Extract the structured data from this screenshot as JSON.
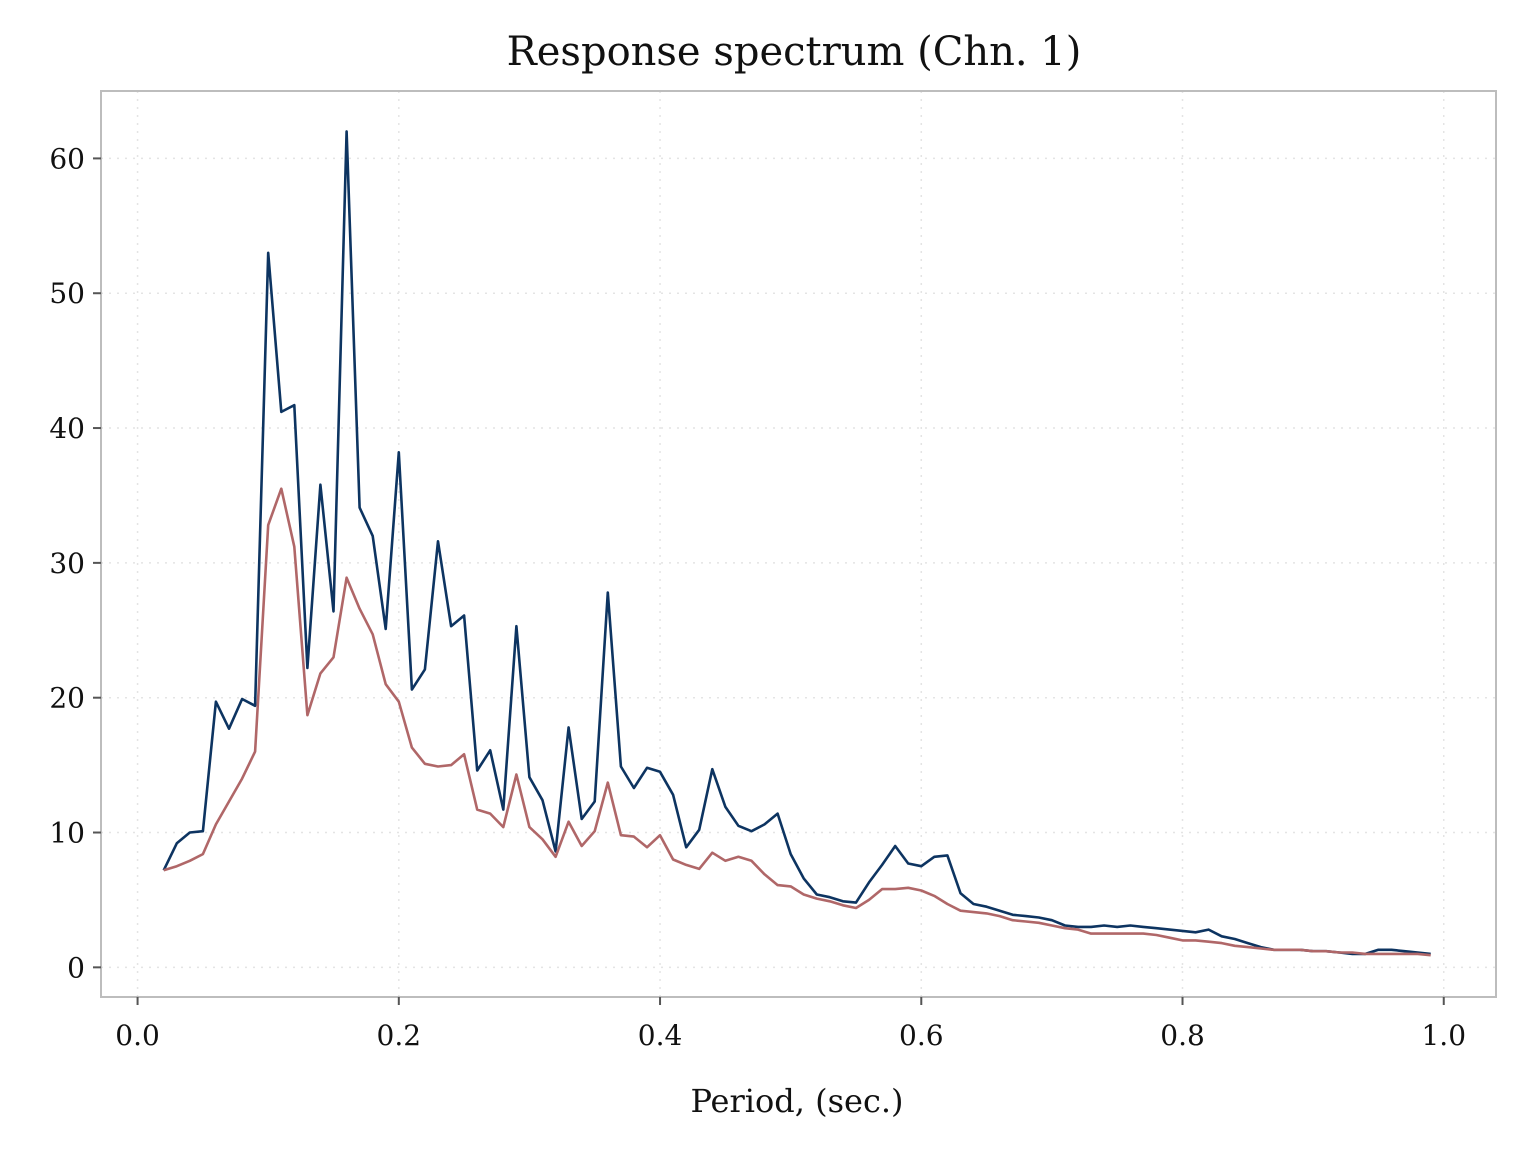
{
  "chart_data": {
    "type": "line",
    "title": "Response spectrum (Chn. 1)",
    "xlabel": "Period, (sec.)",
    "ylabel": "",
    "xlim": [
      -0.028,
      1.04
    ],
    "ylim": [
      -2.2,
      65
    ],
    "xticks": [
      "0.0",
      "0.2",
      "0.4",
      "0.6",
      "0.8",
      "1.0"
    ],
    "yticks": [
      "0",
      "10",
      "20",
      "30",
      "40",
      "50",
      "60"
    ],
    "grid": true,
    "legend": "none",
    "x": [
      0.02,
      0.03,
      0.04,
      0.05,
      0.06,
      0.07,
      0.08,
      0.09,
      0.1,
      0.11,
      0.12,
      0.13,
      0.14,
      0.15,
      0.16,
      0.17,
      0.18,
      0.19,
      0.2,
      0.21,
      0.22,
      0.23,
      0.24,
      0.25,
      0.26,
      0.27,
      0.28,
      0.29,
      0.3,
      0.31,
      0.32,
      0.33,
      0.34,
      0.35,
      0.36,
      0.37,
      0.38,
      0.39,
      0.4,
      0.41,
      0.42,
      0.43,
      0.44,
      0.45,
      0.46,
      0.47,
      0.48,
      0.49,
      0.5,
      0.51,
      0.52,
      0.53,
      0.54,
      0.55,
      0.56,
      0.57,
      0.58,
      0.59,
      0.6,
      0.61,
      0.62,
      0.63,
      0.64,
      0.65,
      0.66,
      0.67,
      0.68,
      0.69,
      0.7,
      0.71,
      0.72,
      0.73,
      0.74,
      0.75,
      0.76,
      0.77,
      0.78,
      0.79,
      0.8,
      0.81,
      0.82,
      0.83,
      0.84,
      0.85,
      0.86,
      0.87,
      0.88,
      0.89,
      0.9,
      0.91,
      0.92,
      0.93,
      0.94,
      0.95,
      0.96,
      0.97,
      0.98,
      0.99
    ],
    "series": [
      {
        "color": "#0d3461",
        "values": [
          7.2,
          9.2,
          10.0,
          10.1,
          19.7,
          17.7,
          19.9,
          19.4,
          53.0,
          41.2,
          41.7,
          22.2,
          35.8,
          26.4,
          62.0,
          34.1,
          32.0,
          25.1,
          38.2,
          20.6,
          22.1,
          31.6,
          25.3,
          26.1,
          14.6,
          16.1,
          11.7,
          25.3,
          14.1,
          12.4,
          8.6,
          17.8,
          11.0,
          12.3,
          27.8,
          14.9,
          13.3,
          14.8,
          14.5,
          12.8,
          8.9,
          10.2,
          14.7,
          11.9,
          10.5,
          10.1,
          10.6,
          11.4,
          8.4,
          6.6,
          5.4,
          5.2,
          4.9,
          4.8,
          6.3,
          7.6,
          9.0,
          7.7,
          7.5,
          8.2,
          8.3,
          5.5,
          4.7,
          4.5,
          4.2,
          3.9,
          3.8,
          3.7,
          3.5,
          3.1,
          3.0,
          3.0,
          3.1,
          3.0,
          3.1,
          3.0,
          2.9,
          2.8,
          2.7,
          2.6,
          2.8,
          2.3,
          2.1,
          1.8,
          1.5,
          1.3,
          1.3,
          1.3,
          1.2,
          1.2,
          1.1,
          1.0,
          1.0,
          1.3,
          1.3,
          1.2,
          1.1,
          1.0
        ]
      },
      {
        "color": "#b06768",
        "values": [
          7.2,
          7.5,
          7.9,
          8.4,
          10.6,
          12.3,
          14.0,
          16.0,
          32.8,
          35.5,
          31.2,
          18.7,
          21.8,
          23.0,
          28.9,
          26.6,
          24.7,
          21.0,
          19.7,
          16.3,
          15.1,
          14.9,
          15.0,
          15.8,
          11.7,
          11.4,
          10.4,
          14.3,
          10.4,
          9.5,
          8.2,
          10.8,
          9.0,
          10.1,
          13.7,
          9.8,
          9.7,
          8.9,
          9.8,
          8.0,
          7.6,
          7.3,
          8.5,
          7.9,
          8.2,
          7.9,
          6.9,
          6.1,
          6.0,
          5.4,
          5.1,
          4.9,
          4.6,
          4.4,
          5.0,
          5.8,
          5.8,
          5.9,
          5.7,
          5.3,
          4.7,
          4.2,
          4.1,
          4.0,
          3.8,
          3.5,
          3.4,
          3.3,
          3.1,
          2.9,
          2.8,
          2.5,
          2.5,
          2.5,
          2.5,
          2.5,
          2.4,
          2.2,
          2.0,
          2.0,
          1.9,
          1.8,
          1.6,
          1.5,
          1.4,
          1.3,
          1.3,
          1.3,
          1.2,
          1.2,
          1.1,
          1.1,
          1.0,
          1.0,
          1.0,
          1.0,
          1.0,
          0.9
        ]
      }
    ]
  }
}
